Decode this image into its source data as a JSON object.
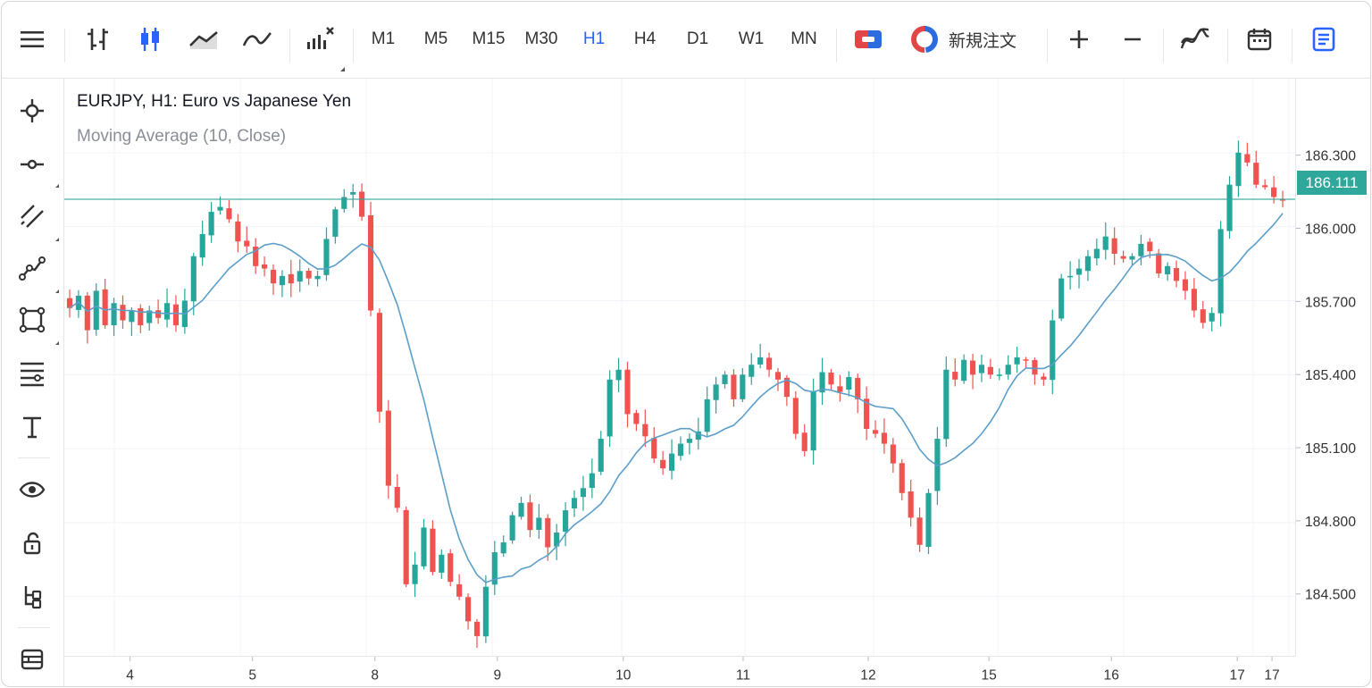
{
  "toolbar": {
    "timeframes": [
      "M1",
      "M5",
      "M15",
      "M30",
      "H1",
      "H4",
      "D1",
      "W1",
      "MN"
    ],
    "active_timeframe": "H1",
    "new_order_label": "新規注文"
  },
  "legend": {
    "symbol_title": "EURJPY, H1: Euro vs Japanese Yen",
    "indicator": "Moving Average (10, Close)"
  },
  "current_price": "186.111",
  "colors": {
    "bull": "#26a69a",
    "bear": "#ef5350",
    "ma_line": "#5b9ec9",
    "price_line": "#2fa79a",
    "accent": "#2962ff"
  },
  "chart_data": {
    "type": "candlestick",
    "symbol": "EURJPY",
    "timeframe": "H1",
    "y_ticks": [
      "186.300",
      "186.000",
      "185.700",
      "185.400",
      "185.100",
      "184.800",
      "184.500"
    ],
    "x_ticks": [
      "4",
      "5",
      "8",
      "9",
      "10",
      "11",
      "12",
      "15",
      "16",
      "17",
      "17"
    ],
    "ylim": [
      184.26,
      186.6
    ],
    "current_price": 186.111,
    "close_path": [
      185.67,
      185.72,
      185.58,
      185.74,
      185.6,
      185.69,
      185.62,
      185.66,
      185.6,
      185.66,
      185.63,
      185.69,
      185.6,
      185.7,
      185.88,
      185.97,
      186.06,
      186.08,
      186.03,
      185.94,
      185.92,
      185.84,
      185.83,
      185.77,
      185.8,
      185.77,
      185.82,
      185.79,
      185.8,
      185.95,
      186.07,
      186.12,
      186.14,
      186.04,
      185.66,
      185.25,
      184.95,
      184.86,
      184.55,
      184.63,
      184.78,
      184.6,
      184.67,
      184.56,
      184.5,
      184.4,
      184.34,
      184.54,
      184.68,
      184.72,
      184.83,
      184.88,
      184.77,
      184.82,
      184.7,
      184.76,
      184.85,
      184.9,
      184.94,
      185.0,
      185.14,
      185.38,
      185.42,
      185.24,
      185.2,
      185.15,
      185.06,
      185.02,
      185.08,
      185.12,
      185.14,
      185.17,
      185.3,
      185.36,
      185.4,
      185.3,
      185.4,
      185.44,
      185.47,
      185.42,
      185.38,
      185.31,
      185.16,
      185.09,
      185.33,
      185.41,
      185.36,
      185.33,
      185.39,
      185.3,
      185.18,
      185.16,
      185.12,
      185.04,
      184.92,
      184.82,
      184.71,
      184.92,
      185.14,
      185.42,
      185.38,
      185.46,
      185.4,
      185.44,
      185.4,
      185.4,
      185.44,
      185.47,
      185.46,
      185.4,
      185.38,
      185.62,
      185.79,
      185.8,
      185.83,
      185.88,
      185.91,
      185.96,
      185.89,
      185.87,
      185.88,
      185.93,
      185.9,
      185.81,
      185.84,
      185.78,
      185.74,
      185.66,
      185.61,
      185.65,
      185.99,
      186.17,
      186.3,
      186.26,
      186.17,
      186.16,
      186.12,
      186.11
    ],
    "moving_average": {
      "name": "Moving Average (10, Close)",
      "period": 10,
      "source": "close"
    },
    "grid": true
  }
}
